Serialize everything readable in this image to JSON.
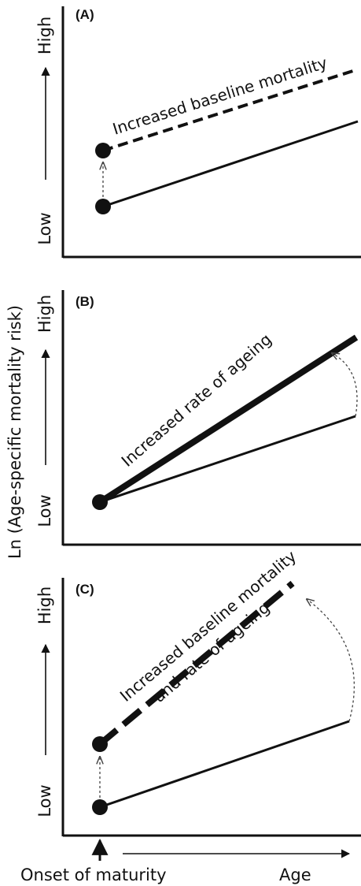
{
  "figure": {
    "y_axis_title": "Ln (Age-specific mortality risk)",
    "x_axis_onset": "Onset of maturity",
    "x_axis_age": "Age",
    "panels": [
      {
        "label": "(A)",
        "high": "High",
        "low": "Low",
        "annotation": "Increased baseline mortality"
      },
      {
        "label": "(B)",
        "high": "High",
        "low": "Low",
        "annotation": "Increased rate of ageing"
      },
      {
        "label": "(C)",
        "high": "High",
        "low": "Low",
        "annotation_line1": "Increased baseline mortality",
        "annotation_line2": "and rate of ageing"
      }
    ]
  },
  "colors": {
    "ink": "#111111",
    "dashed_arrow": "#555555"
  }
}
